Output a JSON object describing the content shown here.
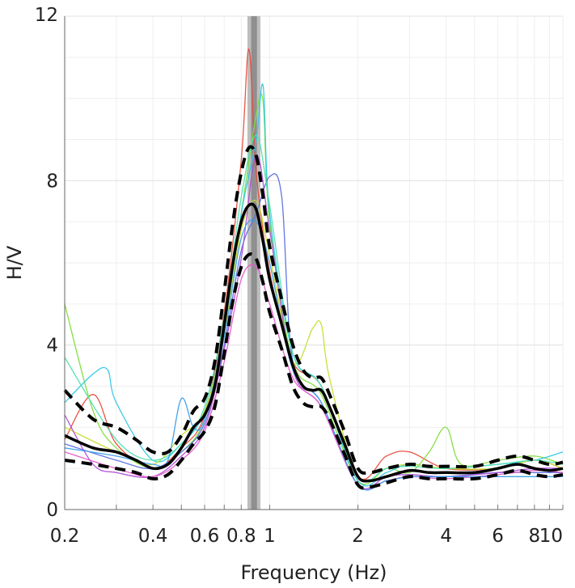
{
  "chart_data": {
    "type": "line",
    "xlabel": "Frequency (Hz)",
    "ylabel": "H/V",
    "x_scale": "log",
    "xlim": [
      0.2,
      10
    ],
    "ylim": [
      0,
      12
    ],
    "x_ticks": [
      {
        "value": 0.2,
        "label": "0.2"
      },
      {
        "value": 0.4,
        "label": "0.4"
      },
      {
        "value": 0.6,
        "label": "0.6"
      },
      {
        "value": 0.8,
        "label": "0.8"
      },
      {
        "value": 1,
        "label": "1"
      },
      {
        "value": 2,
        "label": "2"
      },
      {
        "value": 4,
        "label": "4"
      },
      {
        "value": 6,
        "label": "6"
      },
      {
        "value": 8,
        "label": "8"
      },
      {
        "value": 10,
        "label": "10"
      }
    ],
    "y_ticks": [
      {
        "value": 0,
        "label": "0"
      },
      {
        "value": 4,
        "label": "4"
      },
      {
        "value": 8,
        "label": "8"
      },
      {
        "value": 12,
        "label": "12"
      }
    ],
    "grid": true,
    "peak_band": {
      "x_start": 0.84,
      "x_end": 0.93,
      "inner_start": 0.865,
      "inner_end": 0.905
    },
    "colors": {
      "band_outer": "#bdbdbd",
      "band_inner": "#8f8f8f",
      "mean": "#000000",
      "bound": "#000000",
      "grid_major": "#e3e3e3",
      "grid_minor": "#efefef"
    },
    "mean_curve": {
      "x": [
        0.2,
        0.25,
        0.3,
        0.35,
        0.4,
        0.45,
        0.5,
        0.55,
        0.6,
        0.65,
        0.7,
        0.75,
        0.8,
        0.85,
        0.9,
        0.95,
        1.0,
        1.1,
        1.2,
        1.3,
        1.4,
        1.5,
        1.6,
        1.8,
        2.0,
        2.2,
        2.5,
        3.0,
        3.5,
        4.0,
        5.0,
        6.0,
        7.0,
        8.0,
        9.0,
        10.0
      ],
      "y": [
        1.8,
        1.5,
        1.4,
        1.2,
        1.0,
        1.1,
        1.5,
        2.0,
        2.3,
        3.0,
        4.5,
        6.0,
        7.0,
        7.4,
        7.3,
        6.5,
        5.6,
        4.5,
        3.5,
        3.0,
        2.9,
        2.9,
        2.5,
        1.6,
        0.8,
        0.7,
        0.8,
        0.95,
        0.9,
        0.9,
        0.9,
        1.0,
        1.1,
        1.0,
        0.95,
        1.0
      ]
    },
    "upper_bound": {
      "x": [
        0.2,
        0.25,
        0.3,
        0.35,
        0.4,
        0.45,
        0.5,
        0.55,
        0.6,
        0.65,
        0.7,
        0.75,
        0.8,
        0.85,
        0.9,
        0.95,
        1.0,
        1.1,
        1.2,
        1.3,
        1.4,
        1.5,
        1.6,
        1.8,
        2.0,
        2.2,
        2.5,
        3.0,
        3.5,
        4.0,
        5.0,
        6.0,
        7.0,
        8.0,
        9.0,
        10.0
      ],
      "y": [
        2.9,
        2.2,
        2.0,
        1.7,
        1.4,
        1.4,
        1.8,
        2.4,
        2.7,
        3.6,
        5.3,
        7.0,
        8.2,
        8.8,
        8.6,
        7.6,
        6.4,
        5.1,
        4.0,
        3.4,
        3.2,
        3.2,
        2.8,
        1.9,
        1.0,
        0.9,
        1.0,
        1.1,
        1.05,
        1.05,
        1.05,
        1.2,
        1.3,
        1.2,
        1.1,
        1.15
      ]
    },
    "lower_bound": {
      "x": [
        0.2,
        0.25,
        0.3,
        0.35,
        0.4,
        0.45,
        0.5,
        0.55,
        0.6,
        0.65,
        0.7,
        0.75,
        0.8,
        0.85,
        0.9,
        0.95,
        1.0,
        1.1,
        1.2,
        1.3,
        1.4,
        1.5,
        1.6,
        1.8,
        2.0,
        2.2,
        2.5,
        3.0,
        3.5,
        4.0,
        5.0,
        6.0,
        7.0,
        8.0,
        9.0,
        10.0
      ],
      "y": [
        1.2,
        1.1,
        1.0,
        0.9,
        0.75,
        0.85,
        1.2,
        1.6,
        1.9,
        2.5,
        3.8,
        5.1,
        5.9,
        6.2,
        6.1,
        5.5,
        4.8,
        3.9,
        3.0,
        2.6,
        2.5,
        2.5,
        2.2,
        1.35,
        0.6,
        0.55,
        0.65,
        0.8,
        0.75,
        0.75,
        0.75,
        0.85,
        0.95,
        0.85,
        0.8,
        0.85
      ]
    },
    "individual_curves": [
      {
        "color": "#e74c3c",
        "x": [
          0.2,
          0.25,
          0.3,
          0.4,
          0.5,
          0.6,
          0.7,
          0.8,
          0.85,
          0.9,
          1.0,
          1.2,
          1.5,
          2.0,
          2.5,
          3.0,
          4.0,
          6.0,
          8.0,
          10.0
        ],
        "y": [
          1.7,
          2.8,
          1.6,
          1.0,
          1.5,
          2.3,
          4.8,
          8.5,
          11.2,
          8.2,
          5.8,
          3.6,
          3.0,
          0.8,
          1.3,
          1.4,
          1.0,
          1.0,
          1.2,
          1.0
        ]
      },
      {
        "color": "#7fdd3d",
        "x": [
          0.2,
          0.25,
          0.3,
          0.4,
          0.5,
          0.6,
          0.7,
          0.8,
          0.9,
          0.95,
          1.0,
          1.2,
          1.5,
          2.0,
          2.5,
          3.0,
          3.5,
          4.0,
          4.5,
          6.0,
          8.0,
          10.0
        ],
        "y": [
          5.0,
          2.4,
          1.5,
          1.0,
          1.4,
          2.2,
          4.4,
          7.2,
          9.6,
          9.9,
          7.0,
          3.6,
          2.8,
          0.7,
          1.0,
          0.9,
          1.4,
          2.0,
          1.1,
          1.2,
          1.3,
          1.1
        ]
      },
      {
        "color": "#32c8e6",
        "x": [
          0.2,
          0.25,
          0.28,
          0.3,
          0.4,
          0.5,
          0.6,
          0.7,
          0.8,
          0.9,
          0.95,
          1.0,
          1.2,
          1.5,
          2.0,
          2.5,
          3.0,
          4.0,
          6.0,
          8.0,
          10.0
        ],
        "y": [
          2.6,
          3.3,
          3.4,
          2.6,
          1.2,
          1.6,
          2.4,
          4.4,
          7.2,
          9.0,
          10.3,
          7.2,
          3.8,
          3.0,
          0.7,
          0.9,
          1.1,
          1.0,
          1.1,
          1.2,
          1.4
        ]
      },
      {
        "color": "#c9dd2f",
        "x": [
          0.2,
          0.3,
          0.4,
          0.5,
          0.6,
          0.7,
          0.8,
          0.9,
          1.0,
          1.2,
          1.4,
          1.5,
          1.6,
          2.0,
          2.5,
          3.0,
          4.0,
          6.0,
          8.0,
          10.0
        ],
        "y": [
          2.0,
          1.4,
          1.1,
          1.8,
          2.4,
          4.3,
          6.8,
          7.5,
          6.2,
          3.6,
          4.4,
          4.5,
          3.2,
          0.8,
          1.0,
          1.1,
          1.0,
          1.0,
          1.2,
          1.0
        ]
      },
      {
        "color": "#5a6fe0",
        "x": [
          0.2,
          0.3,
          0.4,
          0.5,
          0.6,
          0.7,
          0.8,
          0.9,
          1.0,
          1.1,
          1.2,
          1.5,
          2.0,
          2.5,
          3.0,
          4.0,
          6.0,
          8.0,
          10.0
        ],
        "y": [
          1.6,
          1.2,
          1.0,
          1.4,
          2.1,
          4.0,
          6.3,
          7.2,
          8.1,
          7.6,
          3.6,
          2.6,
          0.6,
          0.7,
          0.8,
          0.8,
          0.9,
          0.9,
          0.9
        ]
      },
      {
        "color": "#b04fd6",
        "x": [
          0.2,
          0.25,
          0.3,
          0.4,
          0.5,
          0.6,
          0.7,
          0.8,
          0.9,
          1.0,
          1.2,
          1.5,
          2.0,
          2.5,
          3.0,
          4.0,
          6.0,
          8.0,
          10.0
        ],
        "y": [
          2.3,
          1.1,
          0.9,
          0.8,
          1.3,
          2.0,
          3.9,
          6.1,
          8.6,
          6.8,
          3.4,
          2.5,
          0.6,
          0.8,
          0.85,
          0.8,
          0.9,
          1.0,
          1.0
        ]
      },
      {
        "color": "#e65acb",
        "x": [
          0.2,
          0.3,
          0.4,
          0.5,
          0.6,
          0.7,
          0.8,
          0.9,
          1.0,
          1.2,
          1.5,
          2.0,
          2.5,
          3.0,
          4.0,
          6.0,
          8.0,
          10.0
        ],
        "y": [
          1.4,
          1.0,
          0.8,
          1.2,
          1.9,
          3.6,
          5.6,
          5.9,
          5.0,
          3.2,
          2.5,
          0.6,
          0.7,
          0.8,
          0.75,
          0.85,
          0.95,
          0.9
        ]
      },
      {
        "color": "#4fe0b0",
        "x": [
          0.2,
          0.3,
          0.4,
          0.5,
          0.6,
          0.7,
          0.8,
          0.9,
          1.0,
          1.2,
          1.5,
          2.0,
          2.5,
          3.0,
          4.0,
          6.0,
          8.0,
          10.0
        ],
        "y": [
          3.7,
          1.7,
          1.2,
          1.6,
          2.5,
          4.7,
          7.6,
          9.1,
          7.4,
          3.8,
          3.0,
          0.8,
          1.0,
          1.05,
          1.0,
          1.1,
          1.2,
          1.1
        ]
      },
      {
        "color": "#3a9ee8",
        "x": [
          0.2,
          0.3,
          0.4,
          0.45,
          0.5,
          0.55,
          0.6,
          0.7,
          0.8,
          0.9,
          1.0,
          1.2,
          1.5,
          2.0,
          2.5,
          3.0,
          4.0,
          6.0,
          8.0,
          10.0
        ],
        "y": [
          1.5,
          1.3,
          1.1,
          1.2,
          2.7,
          2.0,
          2.2,
          4.2,
          6.6,
          7.0,
          6.0,
          3.4,
          2.6,
          0.6,
          0.7,
          0.8,
          0.8,
          0.8,
          0.8,
          0.8
        ]
      }
    ]
  }
}
